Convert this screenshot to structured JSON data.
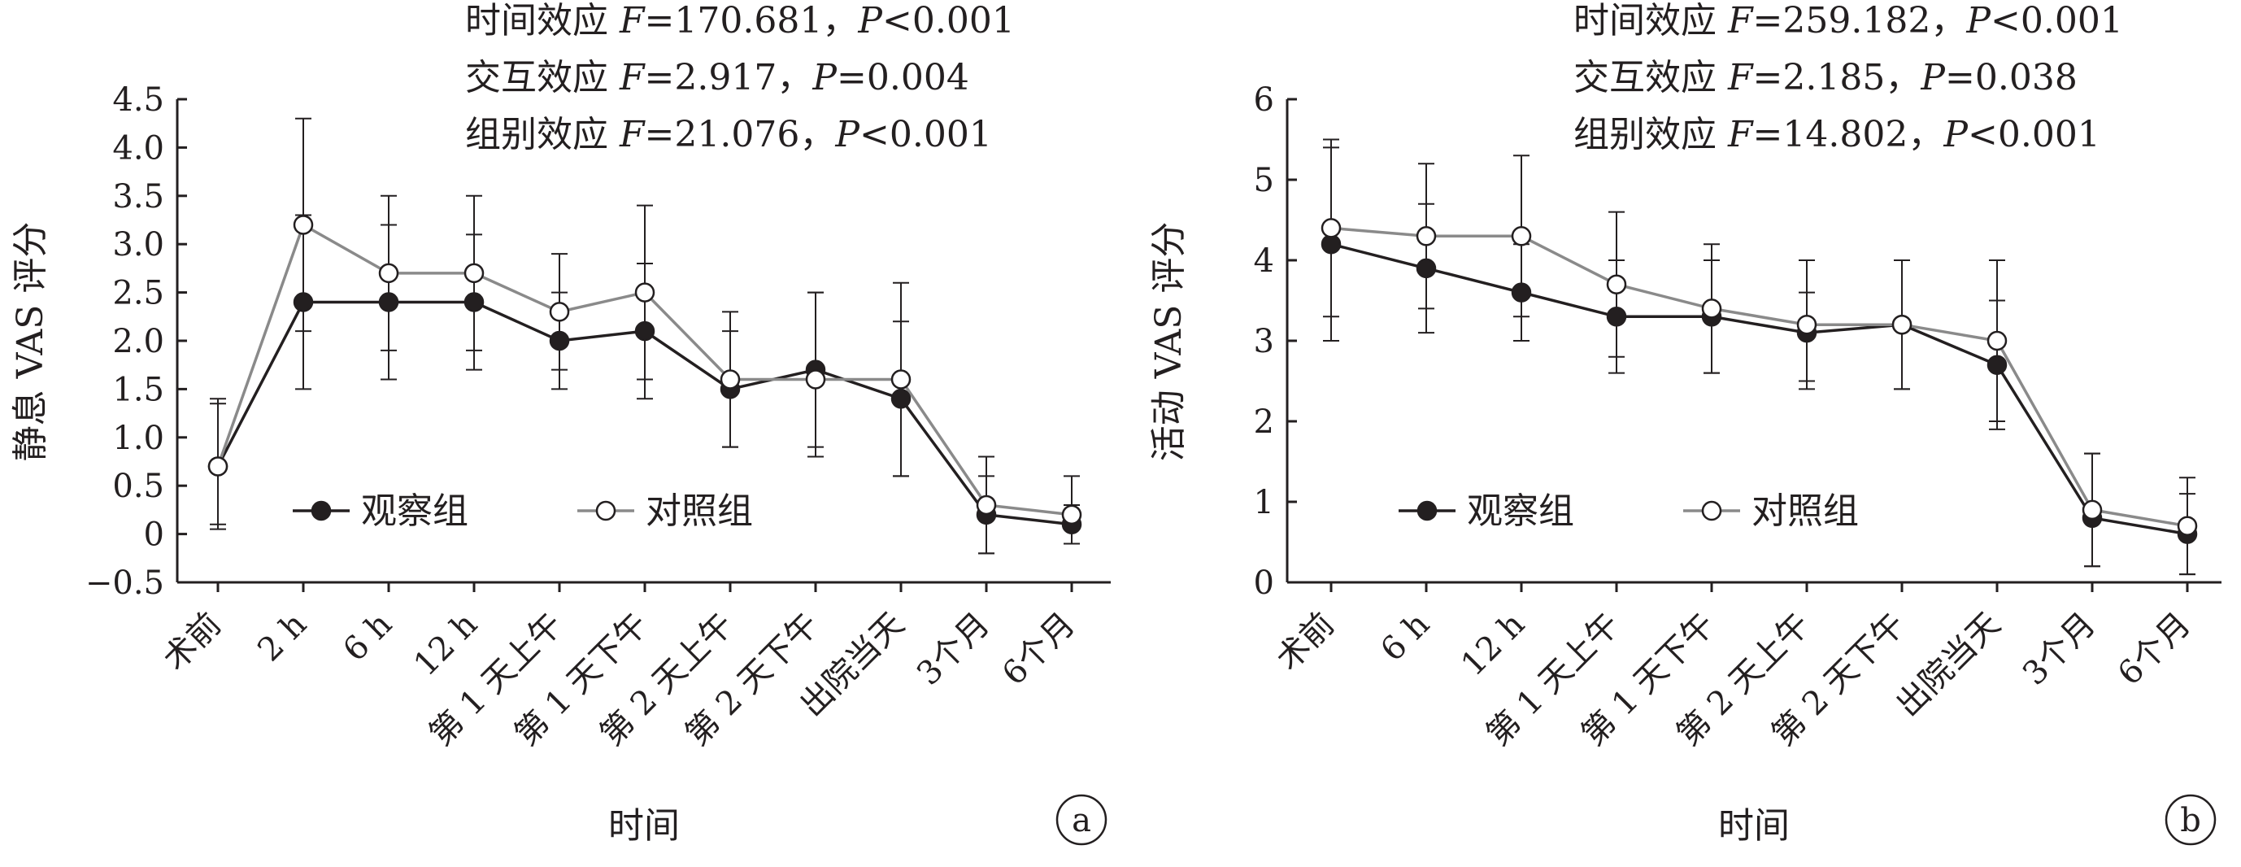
{
  "chart_data": [
    {
      "type": "line",
      "panel": "a",
      "xlabel": "时间",
      "ylabel": "静息 VAS 评分",
      "ylim": [
        -0.5,
        4.5
      ],
      "yticks": [
        -0.5,
        0,
        0.5,
        1.0,
        1.5,
        2.0,
        2.5,
        3.0,
        3.5,
        4.0,
        4.5
      ],
      "ytick_labels": [
        "−0.5",
        "0",
        "0.5",
        "1.0",
        "1.5",
        "2.0",
        "2.5",
        "3.0",
        "3.5",
        "4.0",
        "4.5"
      ],
      "categories": [
        "术前",
        "2 h",
        "6 h",
        "12 h",
        "第 1 天上午",
        "第 1 天下午",
        "第 2 天上午",
        "第 2 天下午",
        "出院当天",
        "3个月",
        "6个月"
      ],
      "stats": [
        "时间效应 F=170.681，P<0.001",
        "交互效应 F=2.917，P=0.004",
        "组别效应 F=21.076，P<0.001"
      ],
      "legend_position": "lower-left",
      "grid": false,
      "series": [
        {
          "name": "观察组",
          "marker": "filled-circle",
          "color": "#231f20",
          "values": [
            0.7,
            2.4,
            2.4,
            2.4,
            2.0,
            2.1,
            1.5,
            1.7,
            1.4,
            0.2,
            0.1
          ],
          "errors": [
            [
              0.05,
              1.35
            ],
            [
              1.5,
              3.3
            ],
            [
              1.6,
              3.2
            ],
            [
              1.7,
              3.1
            ],
            [
              1.5,
              2.5
            ],
            [
              1.4,
              2.8
            ],
            [
              0.9,
              2.1
            ],
            [
              0.8,
              2.5
            ],
            [
              0.6,
              2.2
            ],
            [
              -0.2,
              0.6
            ],
            [
              -0.1,
              0.3
            ]
          ]
        },
        {
          "name": "对照组",
          "marker": "open-circle",
          "color": "#8a8a8a",
          "values": [
            0.7,
            3.2,
            2.7,
            2.7,
            2.3,
            2.5,
            1.6,
            1.6,
            1.6,
            0.3,
            0.2
          ],
          "errors": [
            [
              0.1,
              1.4
            ],
            [
              2.1,
              4.3
            ],
            [
              1.9,
              3.5
            ],
            [
              1.9,
              3.5
            ],
            [
              1.7,
              2.9
            ],
            [
              1.6,
              3.4
            ],
            [
              0.9,
              2.3
            ],
            [
              0.9,
              2.5
            ],
            [
              0.6,
              2.6
            ],
            [
              -0.2,
              0.8
            ],
            [
              -0.1,
              0.6
            ]
          ]
        }
      ],
      "panel_tag": "a"
    },
    {
      "type": "line",
      "panel": "b",
      "xlabel": "时间",
      "ylabel": "活动 VAS 评分",
      "ylim": [
        0,
        6
      ],
      "yticks": [
        0,
        1,
        2,
        3,
        4,
        5,
        6
      ],
      "ytick_labels": [
        "0",
        "1",
        "2",
        "3",
        "4",
        "5",
        "6"
      ],
      "categories": [
        "术前",
        "6 h",
        "12 h",
        "第 1 天上午",
        "第 1 天下午",
        "第 2 天上午",
        "第 2 天下午",
        "出院当天",
        "3个月",
        "6个月"
      ],
      "stats": [
        "时间效应 F=259.182，P<0.001",
        "交互效应 F=2.185，P=0.038",
        "组别效应 F=14.802，P<0.001"
      ],
      "legend_position": "lower-left",
      "grid": false,
      "series": [
        {
          "name": "观察组",
          "marker": "filled-circle",
          "color": "#231f20",
          "values": [
            4.2,
            3.9,
            3.6,
            3.3,
            3.3,
            3.1,
            3.2,
            2.7,
            0.8,
            0.6
          ],
          "errors": [
            [
              3.0,
              5.4
            ],
            [
              3.1,
              4.7
            ],
            [
              3.0,
              4.2
            ],
            [
              2.6,
              4.0
            ],
            [
              2.6,
              4.0
            ],
            [
              2.4,
              3.6
            ],
            [
              2.4,
              4.0
            ],
            [
              1.9,
              3.5
            ],
            [
              0.2,
              1.6
            ],
            [
              0.1,
              1.1
            ]
          ]
        },
        {
          "name": "对照组",
          "marker": "open-circle",
          "color": "#8a8a8a",
          "values": [
            4.4,
            4.3,
            4.3,
            3.7,
            3.4,
            3.2,
            3.2,
            3.0,
            0.9,
            0.7
          ],
          "errors": [
            [
              3.3,
              5.5
            ],
            [
              3.4,
              5.2
            ],
            [
              3.3,
              5.3
            ],
            [
              2.8,
              4.6
            ],
            [
              2.6,
              4.2
            ],
            [
              2.5,
              4.0
            ],
            [
              2.4,
              4.0
            ],
            [
              2.0,
              4.0
            ],
            [
              0.2,
              1.6
            ],
            [
              0.1,
              1.3
            ]
          ]
        }
      ],
      "panel_tag": "b"
    }
  ]
}
